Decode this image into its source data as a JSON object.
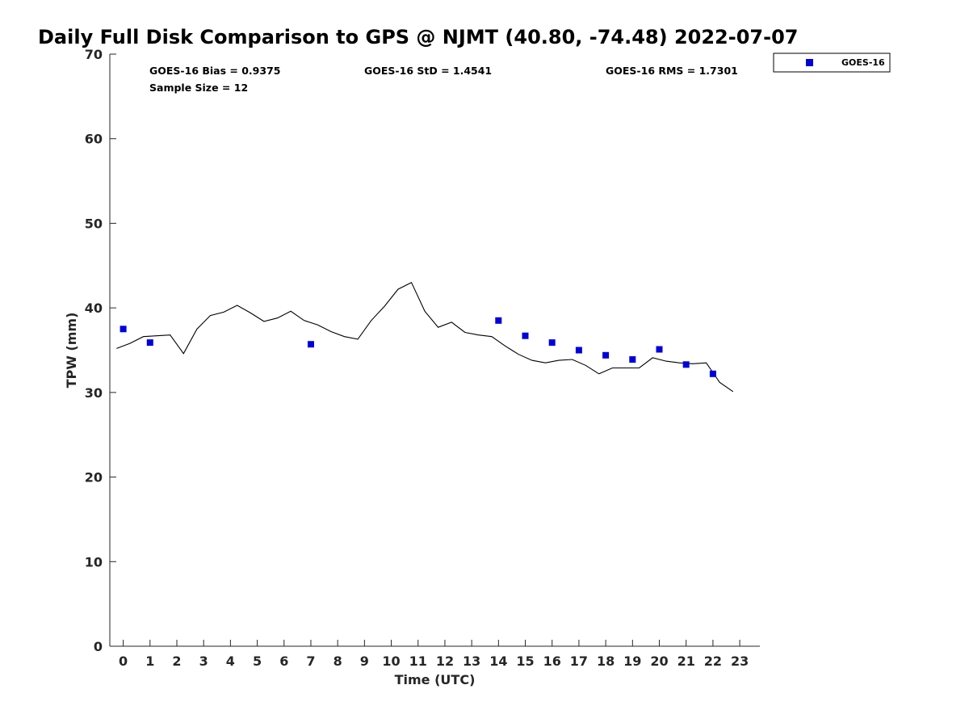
{
  "chart_data": {
    "type": "scatter",
    "title": "Daily Full Disk Comparison to GPS @ NJMT (40.80, -74.48) 2022-07-07",
    "xlabel": "Time (UTC)",
    "ylabel": "TPW (mm)",
    "xlim": [
      -0.5,
      23.75
    ],
    "ylim": [
      0,
      70
    ],
    "xticks": [
      "0",
      "1",
      "2",
      "3",
      "4",
      "5",
      "6",
      "7",
      "8",
      "9",
      "10",
      "11",
      "12",
      "13",
      "14",
      "15",
      "16",
      "17",
      "18",
      "19",
      "20",
      "21",
      "22",
      "23"
    ],
    "yticks": [
      "0",
      "10",
      "20",
      "30",
      "40",
      "50",
      "60",
      "70"
    ],
    "grid": false,
    "legend_position": "top-right",
    "stats": {
      "bias": "GOES-16 Bias = 0.9375",
      "std": "GOES-16 StD = 1.4541",
      "rms": "GOES-16 RMS = 1.7301",
      "sample": "Sample Size = 12"
    },
    "series": [
      {
        "name": "GOES-16",
        "kind": "scatter",
        "color": "#0000dd",
        "x": [
          0,
          1,
          7,
          14,
          15,
          16,
          17,
          18,
          19,
          20,
          21,
          22
        ],
        "y": [
          37.5,
          35.9,
          35.7,
          38.5,
          36.7,
          35.9,
          35.0,
          34.4,
          33.9,
          35.1,
          33.3,
          32.2
        ]
      },
      {
        "kind": "line",
        "color": "#000000",
        "x": [
          -0.25,
          0.25,
          0.75,
          1.25,
          1.75,
          2.25,
          2.75,
          3.25,
          3.75,
          4.25,
          4.75,
          5.25,
          5.75,
          6.25,
          6.75,
          7.25,
          7.75,
          8.25,
          8.75,
          9.25,
          9.75,
          10.25,
          10.75,
          11.25,
          11.75,
          12.25,
          12.75,
          13.25,
          13.75,
          14.25,
          14.75,
          15.25,
          15.75,
          16.25,
          16.75,
          17.25,
          17.75,
          18.25,
          18.75,
          19.25,
          19.75,
          20.25,
          20.75,
          21.25,
          21.75,
          22.25,
          22.75
        ],
        "y": [
          35.2,
          35.8,
          36.6,
          36.7,
          36.8,
          34.6,
          37.5,
          39.1,
          39.5,
          40.3,
          39.4,
          38.4,
          38.8,
          39.6,
          38.5,
          38.0,
          37.2,
          36.6,
          36.3,
          38.5,
          40.2,
          42.2,
          43.0,
          39.6,
          37.7,
          38.3,
          37.1,
          36.8,
          36.6,
          35.5,
          34.5,
          33.8,
          33.5,
          33.8,
          33.9,
          33.2,
          32.2,
          32.9,
          32.9,
          32.9,
          34.1,
          33.7,
          33.5,
          33.4,
          33.5,
          31.2,
          30.1
        ]
      }
    ]
  }
}
